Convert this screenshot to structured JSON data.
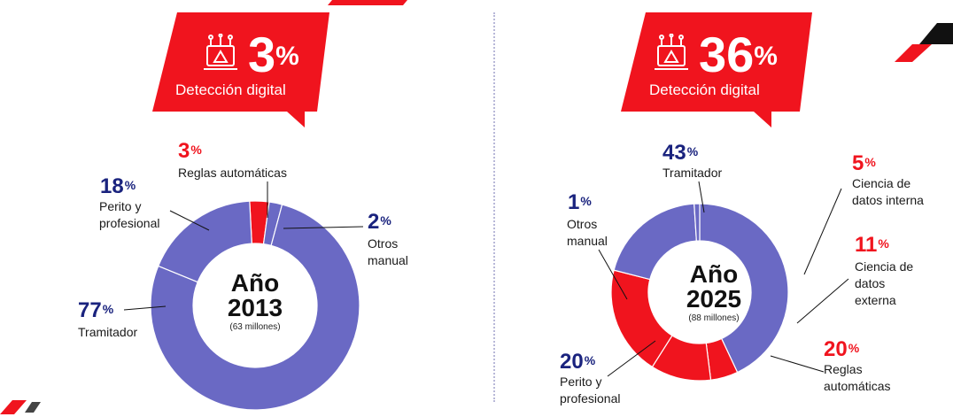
{
  "left": {
    "badge_pct": "3",
    "badge_pct_symbol": "%",
    "badge_label": "Detección digital",
    "center_title_1": "Año",
    "center_title_2": "2013",
    "center_sub": "(63 millones)",
    "labels": [
      {
        "pct": "3",
        "sym": "%",
        "text": "Reglas automáticas"
      },
      {
        "pct": "18",
        "sym": "%",
        "text": "Perito y profesional"
      },
      {
        "pct": "2",
        "sym": "%",
        "text": "Otros manual"
      },
      {
        "pct": "77",
        "sym": "%",
        "text": "Tramitador"
      }
    ]
  },
  "right": {
    "badge_pct": "36",
    "badge_pct_symbol": "%",
    "badge_label": "Detección digital",
    "center_title_1": "Año",
    "center_title_2": "2025",
    "center_sub": "(88 millones)",
    "labels": [
      {
        "pct": "43",
        "sym": "%",
        "text": "Tramitador"
      },
      {
        "pct": "1",
        "sym": "%",
        "text": "Otros manual"
      },
      {
        "pct": "5",
        "sym": "%",
        "text": "Ciencia de datos interna"
      },
      {
        "pct": "11",
        "sym": "%",
        "text": "Ciencia de datos externa"
      },
      {
        "pct": "20",
        "sym": "%",
        "text": "Reglas automáticas"
      },
      {
        "pct": "20",
        "sym": "%",
        "text": "Perito y profesional"
      }
    ]
  },
  "colors": {
    "purple": "#6a69c4",
    "red": "#f0141e",
    "navy": "#1a237e"
  },
  "chart_data": [
    {
      "type": "pie",
      "title": "Año 2013",
      "subtitle": "(63 millones)",
      "categories": [
        "Reglas automáticas",
        "Otros manual",
        "Tramitador",
        "Perito y profesional"
      ],
      "values": [
        3,
        2,
        77,
        18
      ],
      "colors": [
        "#f0141e",
        "#6a69c4",
        "#6a69c4",
        "#6a69c4"
      ],
      "legend": "none"
    },
    {
      "type": "pie",
      "title": "Año 2025",
      "subtitle": "(88 millones)",
      "categories": [
        "Tramitador",
        "Ciencia de datos interna",
        "Ciencia de datos externa",
        "Reglas automáticas",
        "Perito y profesional",
        "Otros manual"
      ],
      "values": [
        43,
        5,
        11,
        20,
        20,
        1
      ],
      "colors": [
        "#6a69c4",
        "#f0141e",
        "#f0141e",
        "#f0141e",
        "#6a69c4",
        "#6a69c4"
      ],
      "legend": "none"
    }
  ]
}
